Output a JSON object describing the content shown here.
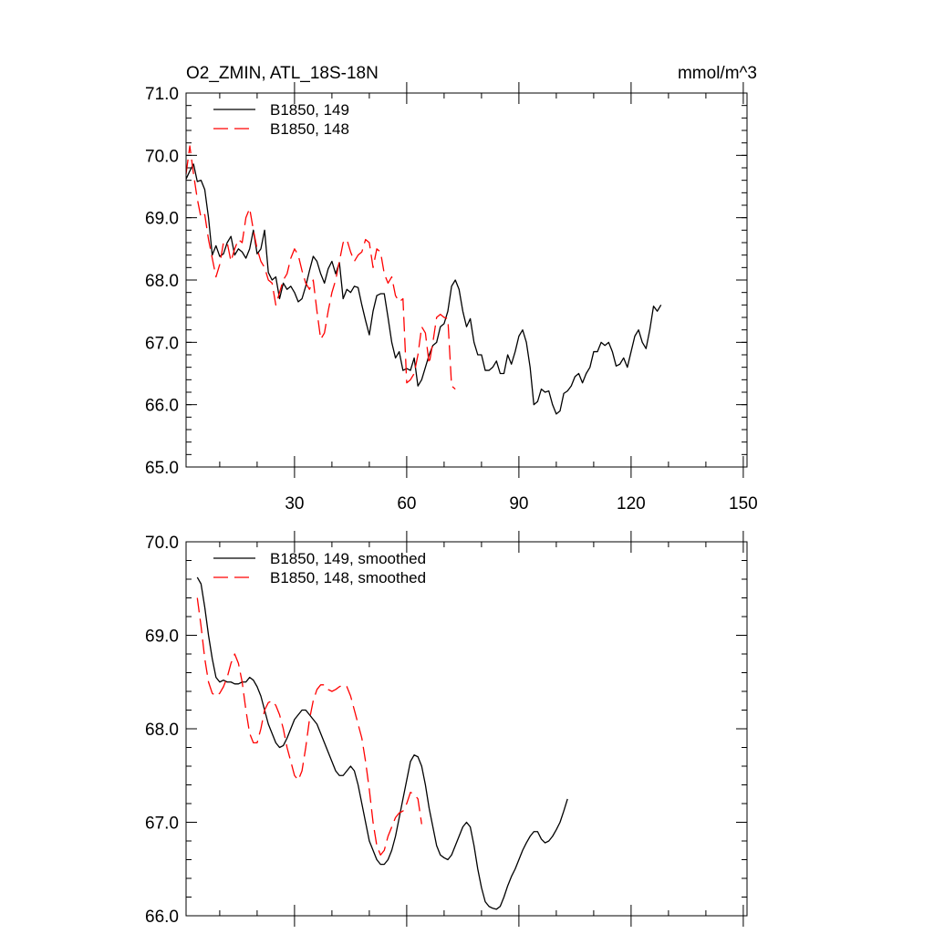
{
  "chart_data": [
    {
      "type": "line",
      "title": "O2_ZMIN, ATL_18S-18N",
      "units": "mmol/m^3",
      "xlim": [
        1,
        151
      ],
      "ylim": [
        65.0,
        71.0
      ],
      "x_ticks": [
        30,
        60,
        90,
        120,
        150
      ],
      "y_ticks": [
        "65.0",
        "66.0",
        "67.0",
        "68.0",
        "69.0",
        "70.0",
        "71.0"
      ],
      "legend_position": "top-left",
      "series": [
        {
          "name": "B1850, 149",
          "color": "#000000",
          "dash": "solid",
          "x_start": 1,
          "values": [
            69.62,
            69.75,
            69.86,
            69.58,
            69.6,
            69.45,
            69.0,
            68.4,
            68.55,
            68.38,
            68.42,
            68.6,
            68.7,
            68.4,
            68.5,
            68.45,
            68.35,
            68.5,
            68.8,
            68.42,
            68.5,
            68.8,
            68.12,
            68.0,
            68.05,
            67.7,
            67.95,
            67.85,
            67.9,
            67.8,
            67.65,
            67.7,
            67.9,
            68.15,
            68.38,
            68.3,
            68.1,
            67.95,
            68.18,
            68.3,
            68.1,
            68.28,
            67.7,
            67.85,
            67.8,
            67.9,
            67.88,
            67.6,
            67.35,
            67.12,
            67.5,
            67.75,
            67.78,
            67.78,
            67.4,
            67.0,
            66.75,
            66.85,
            66.55,
            66.58,
            66.55,
            66.75,
            66.3,
            66.4,
            66.6,
            66.8,
            66.95,
            67.0,
            67.25,
            67.3,
            67.5,
            67.9,
            68.0,
            67.85,
            67.5,
            67.25,
            67.38,
            67.0,
            66.8,
            66.8,
            66.55,
            66.55,
            66.6,
            66.7,
            66.5,
            66.5,
            66.8,
            66.65,
            66.85,
            67.1,
            67.2,
            67.0,
            66.6,
            66.0,
            66.05,
            66.25,
            66.2,
            66.22,
            66.0,
            65.85,
            65.9,
            66.18,
            66.22,
            66.3,
            66.45,
            66.5,
            66.35,
            66.5,
            66.6,
            66.85,
            66.85,
            67.0,
            66.95,
            67.0,
            66.85,
            66.62,
            66.65,
            66.75,
            66.6,
            66.85,
            67.1,
            67.2,
            67.0,
            66.9,
            67.2,
            67.58,
            67.5,
            67.6
          ]
        },
        {
          "name": "B1850, 148",
          "color": "#ff0000",
          "dash": "dashed",
          "x_start": 1,
          "values": [
            69.7,
            70.15,
            69.7,
            69.3,
            69.0,
            69.05,
            68.65,
            68.35,
            68.05,
            68.25,
            68.6,
            68.6,
            68.3,
            68.5,
            68.65,
            68.6,
            69.0,
            69.15,
            68.8,
            68.5,
            68.3,
            68.2,
            68.0,
            67.95,
            67.6,
            67.8,
            68.0,
            68.1,
            68.35,
            68.5,
            68.4,
            68.15,
            67.95,
            67.85,
            68.0,
            67.5,
            67.05,
            67.15,
            67.5,
            67.8,
            68.0,
            68.3,
            68.6,
            68.65,
            68.45,
            68.3,
            68.4,
            68.45,
            68.65,
            68.6,
            68.2,
            68.5,
            68.45,
            68.1,
            67.95,
            68.05,
            67.75,
            67.65,
            67.7,
            66.35,
            66.4,
            66.5,
            66.8,
            67.25,
            67.15,
            66.65,
            67.0,
            67.4,
            67.45,
            67.4,
            67.38,
            66.3,
            66.25
          ]
        }
      ]
    },
    {
      "type": "line",
      "title": "",
      "xlim": [
        1,
        151
      ],
      "ylim": [
        66.0,
        70.0
      ],
      "y_ticks": [
        "66.0",
        "67.0",
        "68.0",
        "69.0",
        "70.0"
      ],
      "legend_position": "top-left",
      "series": [
        {
          "name": "B1850, 149, smoothed",
          "color": "#000000",
          "dash": "solid",
          "x_start": 4,
          "values": [
            69.62,
            69.55,
            69.3,
            69.0,
            68.75,
            68.55,
            68.5,
            68.52,
            68.5,
            68.5,
            68.48,
            68.48,
            68.5,
            68.5,
            68.55,
            68.52,
            68.45,
            68.35,
            68.2,
            68.05,
            67.95,
            67.85,
            67.8,
            67.82,
            67.9,
            68.0,
            68.1,
            68.15,
            68.2,
            68.2,
            68.15,
            68.1,
            68.05,
            67.95,
            67.85,
            67.75,
            67.65,
            67.55,
            67.5,
            67.5,
            67.55,
            67.6,
            67.55,
            67.4,
            67.2,
            67.0,
            66.8,
            66.7,
            66.6,
            66.55,
            66.55,
            66.6,
            66.7,
            66.85,
            67.05,
            67.25,
            67.45,
            67.65,
            67.72,
            67.7,
            67.6,
            67.4,
            67.15,
            66.95,
            66.75,
            66.65,
            66.62,
            66.6,
            66.65,
            66.75,
            66.85,
            66.95,
            67.0,
            66.95,
            66.75,
            66.5,
            66.3,
            66.15,
            66.1,
            66.08,
            66.07,
            66.1,
            66.2,
            66.32,
            66.42,
            66.5,
            66.6,
            66.7,
            66.78,
            66.85,
            66.9,
            66.9,
            66.82,
            66.78,
            66.8,
            66.85,
            66.92,
            67.0,
            67.12,
            67.25
          ]
        },
        {
          "name": "B1850, 148, smoothed",
          "color": "#ff0000",
          "dash": "dashed",
          "x_start": 4,
          "values": [
            69.4,
            69.1,
            68.75,
            68.5,
            68.38,
            68.35,
            68.38,
            68.45,
            68.55,
            68.7,
            68.8,
            68.7,
            68.5,
            68.2,
            67.95,
            67.85,
            67.85,
            68.0,
            68.2,
            68.28,
            68.3,
            68.25,
            68.15,
            68.0,
            67.8,
            67.65,
            67.5,
            67.45,
            67.55,
            67.8,
            68.1,
            68.3,
            68.42,
            68.47,
            68.47,
            68.42,
            68.4,
            68.42,
            68.45,
            68.47,
            68.45,
            68.35,
            68.2,
            68.05,
            67.9,
            67.65,
            67.35,
            67.0,
            66.75,
            66.65,
            66.7,
            66.85,
            66.95,
            67.05,
            67.1,
            67.12,
            67.2,
            67.32,
            67.3,
            67.25,
            66.98
          ]
        }
      ]
    }
  ]
}
